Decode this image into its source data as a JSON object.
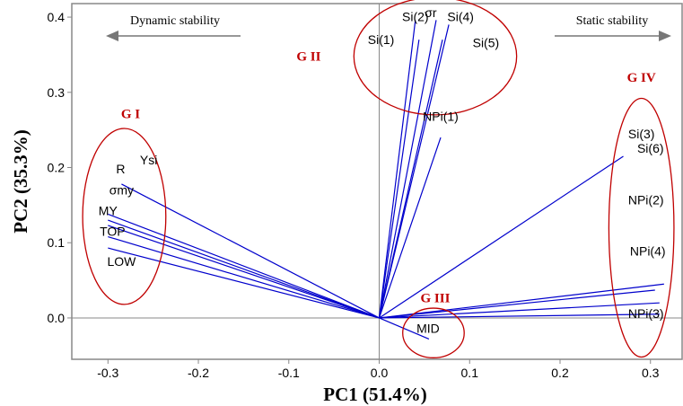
{
  "chart_data": {
    "type": "biplot",
    "xlabel": "PC1 (51.4%)",
    "ylabel": "PC2 (35.3%)",
    "xlim": [
      -0.34,
      0.335
    ],
    "ylim": [
      -0.055,
      0.418
    ],
    "x_ticks": [
      -0.3,
      -0.2,
      -0.1,
      0.0,
      0.1,
      0.2,
      0.3
    ],
    "y_ticks": [
      0.0,
      0.1,
      0.2,
      0.3,
      0.4
    ],
    "x_tick_labels": [
      "-0.3",
      "-0.2",
      "-0.1",
      "0.0",
      "0.1",
      "0.2",
      "0.3"
    ],
    "y_tick_labels": [
      "0.0",
      "0.1",
      "0.2",
      "0.3",
      "0.4"
    ],
    "reference_lines": {
      "x": 0,
      "y": 0
    },
    "vector_color": "#0000cc",
    "group_color": "#c00000",
    "vectors": [
      {
        "label": "Ysi",
        "x": -0.285,
        "y": 0.178
      },
      {
        "label": "R",
        "x": -0.3,
        "y": 0.138
      },
      {
        "label": "σmy",
        "x": -0.3,
        "y": 0.13
      },
      {
        "label": "MY",
        "x": -0.3,
        "y": 0.123
      },
      {
        "label": "TOP",
        "x": -0.3,
        "y": 0.108
      },
      {
        "label": "LOW",
        "x": -0.3,
        "y": 0.093
      },
      {
        "label": "Si(2)",
        "x": 0.04,
        "y": 0.396
      },
      {
        "label": "σr",
        "x": 0.063,
        "y": 0.396
      },
      {
        "label": "Si(4)",
        "x": 0.077,
        "y": 0.39
      },
      {
        "label": "Si(1)",
        "x": 0.044,
        "y": 0.37
      },
      {
        "label": "Si(5)",
        "x": 0.07,
        "y": 0.37
      },
      {
        "label": "NPi(1)",
        "x": 0.068,
        "y": 0.24
      },
      {
        "label": "Si(3)",
        "x": 0.27,
        "y": 0.215
      },
      {
        "label": "Si(6)",
        "x": 0.315,
        "y": 0.045
      },
      {
        "label": "NPi(2)",
        "x": 0.305,
        "y": 0.037
      },
      {
        "label": "NPi(4)",
        "x": 0.31,
        "y": 0.02
      },
      {
        "label": "NPi(3)",
        "x": 0.31,
        "y": 0.005
      },
      {
        "label": "MID",
        "x": 0.055,
        "y": -0.028
      }
    ],
    "labels": [
      {
        "text": "Ysi",
        "x": -0.255,
        "y": 0.204
      },
      {
        "text": "R",
        "x": -0.286,
        "y": 0.192
      },
      {
        "text": "σmy",
        "x": -0.285,
        "y": 0.164
      },
      {
        "text": "MY",
        "x": -0.3,
        "y": 0.137
      },
      {
        "text": "TOP",
        "x": -0.295,
        "y": 0.109
      },
      {
        "text": "LOW",
        "x": -0.285,
        "y": 0.069
      },
      {
        "text": "Si(2)",
        "x": 0.04,
        "y": 0.395
      },
      {
        "text": "σr",
        "x": 0.057,
        "y": 0.4
      },
      {
        "text": "Si(4)",
        "x": 0.09,
        "y": 0.395
      },
      {
        "text": "Si(1)",
        "x": 0.002,
        "y": 0.364
      },
      {
        "text": "Si(5)",
        "x": 0.118,
        "y": 0.36
      },
      {
        "text": "NPi(1)",
        "x": 0.068,
        "y": 0.262
      },
      {
        "text": "Si(3)",
        "x": 0.29,
        "y": 0.239
      },
      {
        "text": "Si(6)",
        "x": 0.3,
        "y": 0.22
      },
      {
        "text": "NPi(2)",
        "x": 0.295,
        "y": 0.151
      },
      {
        "text": "NPi(4)",
        "x": 0.297,
        "y": 0.083
      },
      {
        "text": "NPi(3)",
        "x": 0.295,
        "y": 0.0
      },
      {
        "text": "MID",
        "x": 0.054,
        "y": -0.02
      }
    ],
    "groups": [
      {
        "name": "G I",
        "ellipse": {
          "cx": -0.282,
          "cy": 0.135,
          "rx": 0.046,
          "ry": 0.117
        },
        "label_pos": {
          "x": -0.275,
          "y": 0.266
        }
      },
      {
        "name": "G II",
        "ellipse": {
          "cx": 0.062,
          "cy": 0.348,
          "rx": 0.09,
          "ry": 0.078
        },
        "label_pos": {
          "x": -0.078,
          "y": 0.342
        }
      },
      {
        "name": "G III",
        "ellipse": {
          "cx": 0.06,
          "cy": -0.02,
          "rx": 0.034,
          "ry": 0.033
        },
        "label_pos": {
          "x": 0.062,
          "y": 0.021
        }
      },
      {
        "name": "G IV",
        "ellipse": {
          "cx": 0.29,
          "cy": 0.12,
          "rx": 0.036,
          "ry": 0.172
        },
        "label_pos": {
          "x": 0.29,
          "y": 0.314
        }
      }
    ],
    "direction_annotations": [
      {
        "text": "Dynamic stability",
        "arrow": "left"
      },
      {
        "text": "Static stability",
        "arrow": "right"
      }
    ]
  }
}
